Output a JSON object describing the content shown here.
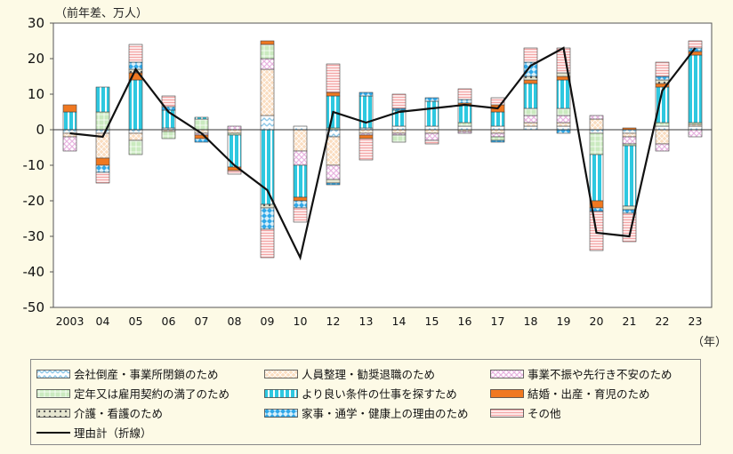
{
  "chart_data": {
    "type": "bar",
    "subtype": "stacked",
    "unit_label": "（前年差、万人）",
    "x_unit_label": "（年）",
    "categories": [
      "2003",
      "04",
      "05",
      "06",
      "07",
      "08",
      "09",
      "10",
      "12",
      "13",
      "14",
      "15",
      "16",
      "17",
      "18",
      "19",
      "20",
      "21",
      "22",
      "23"
    ],
    "ylim": [
      -50,
      30
    ],
    "yticks": [
      -50,
      -40,
      -30,
      -20,
      -10,
      0,
      10,
      20,
      30
    ],
    "grid": false,
    "legend_position": "bottom",
    "series": [
      {
        "name": "会社倒産・事業所閉鎖のため",
        "color": "#8dc8e8",
        "values": [
          -1,
          -1,
          -1,
          0.5,
          0,
          0,
          4,
          1,
          -2,
          0.5,
          1,
          1,
          1,
          1,
          1,
          1,
          -1,
          -1,
          1,
          1
        ]
      },
      {
        "name": "人員整理・勧奨退職のため",
        "color": "#f6c08c",
        "values": [
          -1,
          -7,
          -2,
          -0.5,
          -1,
          -1,
          13,
          -6,
          -8,
          -1,
          -1,
          -1,
          -0.5,
          -1,
          1,
          1,
          3,
          -1,
          -4,
          0.5
        ]
      },
      {
        "name": "事業不振や先行き不安のため",
        "color": "#e8b4e0",
        "values": [
          -4,
          0,
          0,
          0,
          -0.5,
          1,
          3,
          -4,
          -4,
          -0.5,
          -0.5,
          -2,
          -0.5,
          -1,
          2,
          2,
          1,
          -2,
          -2,
          -2
        ]
      },
      {
        "name": "定年又は雇用契約の満了のため",
        "color": "#a6dc94",
        "values": [
          0,
          5,
          -4,
          -2,
          3,
          -0.5,
          4,
          0,
          0.5,
          0,
          -2,
          0,
          1,
          -1,
          2,
          2,
          -6,
          -0.5,
          1,
          0.5
        ]
      },
      {
        "name": "より良い条件の仕事を探すため",
        "color": "#2ec8e0",
        "values": [
          5,
          7,
          14,
          5,
          0.5,
          -9,
          -21,
          -9,
          9,
          9,
          4.5,
          7,
          5,
          4,
          7,
          8,
          -13,
          -17,
          10,
          19
        ]
      },
      {
        "name": "結婚・出産・育児のため",
        "color": "#f07820",
        "values": [
          2,
          -2,
          2,
          0,
          -1,
          -1,
          1,
          -1,
          1,
          -1,
          0,
          0,
          0.5,
          2,
          1,
          1,
          -2,
          0.5,
          1,
          1
        ]
      },
      {
        "name": "介護・看護のため",
        "color": "#b0b090",
        "values": [
          0,
          0,
          1,
          0,
          0,
          0,
          -1,
          0,
          -1,
          0,
          0,
          0,
          0,
          0,
          1,
          1,
          0,
          -1,
          1,
          0
        ]
      },
      {
        "name": "家事・通学・健康上の理由のため",
        "color": "#30a8e8",
        "values": [
          0,
          -2,
          2,
          1,
          -1,
          0,
          -6,
          -2,
          -0.5,
          1,
          0.5,
          1,
          1,
          -0.5,
          4,
          -1,
          -1,
          -1,
          1,
          1
        ]
      },
      {
        "name": "その他",
        "color": "#f4a4a4",
        "values": [
          0,
          -3,
          5,
          3,
          0,
          -1,
          -8,
          -4,
          8,
          -6,
          4,
          -1,
          3,
          2,
          4,
          7,
          -11,
          -8,
          4,
          2
        ]
      }
    ],
    "line_series": {
      "name": "理由計（折線）",
      "color": "#111111",
      "values": [
        -1,
        -2,
        17,
        5,
        -1,
        -10,
        -17,
        -36,
        5,
        2,
        5,
        6,
        7,
        6,
        18,
        23,
        -29,
        -30,
        11,
        23
      ]
    }
  }
}
